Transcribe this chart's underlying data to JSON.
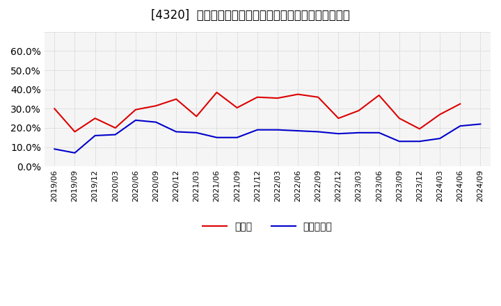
{
  "title": "[4320]  現預金、有利子負債の総資産に対する比率の推移",
  "x_labels": [
    "2019/06",
    "2019/09",
    "2019/12",
    "2020/03",
    "2020/06",
    "2020/09",
    "2020/12",
    "2021/03",
    "2021/06",
    "2021/09",
    "2021/12",
    "2022/03",
    "2022/06",
    "2022/09",
    "2022/12",
    "2023/03",
    "2023/06",
    "2023/09",
    "2023/12",
    "2024/03",
    "2024/06",
    "2024/09"
  ],
  "cash": [
    30.0,
    18.0,
    25.0,
    20.0,
    29.5,
    31.5,
    35.0,
    26.0,
    38.5,
    30.5,
    36.0,
    35.5,
    37.5,
    36.0,
    25.0,
    29.0,
    37.0,
    25.0,
    19.5,
    27.0,
    32.5,
    null
  ],
  "debt": [
    9.0,
    7.0,
    16.0,
    16.5,
    24.0,
    23.0,
    18.0,
    17.5,
    15.0,
    15.0,
    19.0,
    19.0,
    18.5,
    18.0,
    17.0,
    17.5,
    17.5,
    13.0,
    13.0,
    14.5,
    21.0,
    22.0
  ],
  "cash_color": "#dd0000",
  "debt_color": "#0000cc",
  "ylim": [
    0,
    70
  ],
  "yticks": [
    0,
    10,
    20,
    30,
    40,
    50,
    60,
    70
  ],
  "ytick_labels": [
    "0.0%",
    "10.0%",
    "20.0%",
    "30.0%",
    "40.0%",
    "50.0%",
    "60.0%",
    ""
  ],
  "legend_cash": "現預金",
  "legend_debt": "有利子負債",
  "bg_color": "#ffffff",
  "plot_bg_color": "#f5f5f5",
  "grid_color": "#aaaaaa",
  "title_fontsize": 12,
  "axis_fontsize": 8,
  "legend_fontsize": 10
}
